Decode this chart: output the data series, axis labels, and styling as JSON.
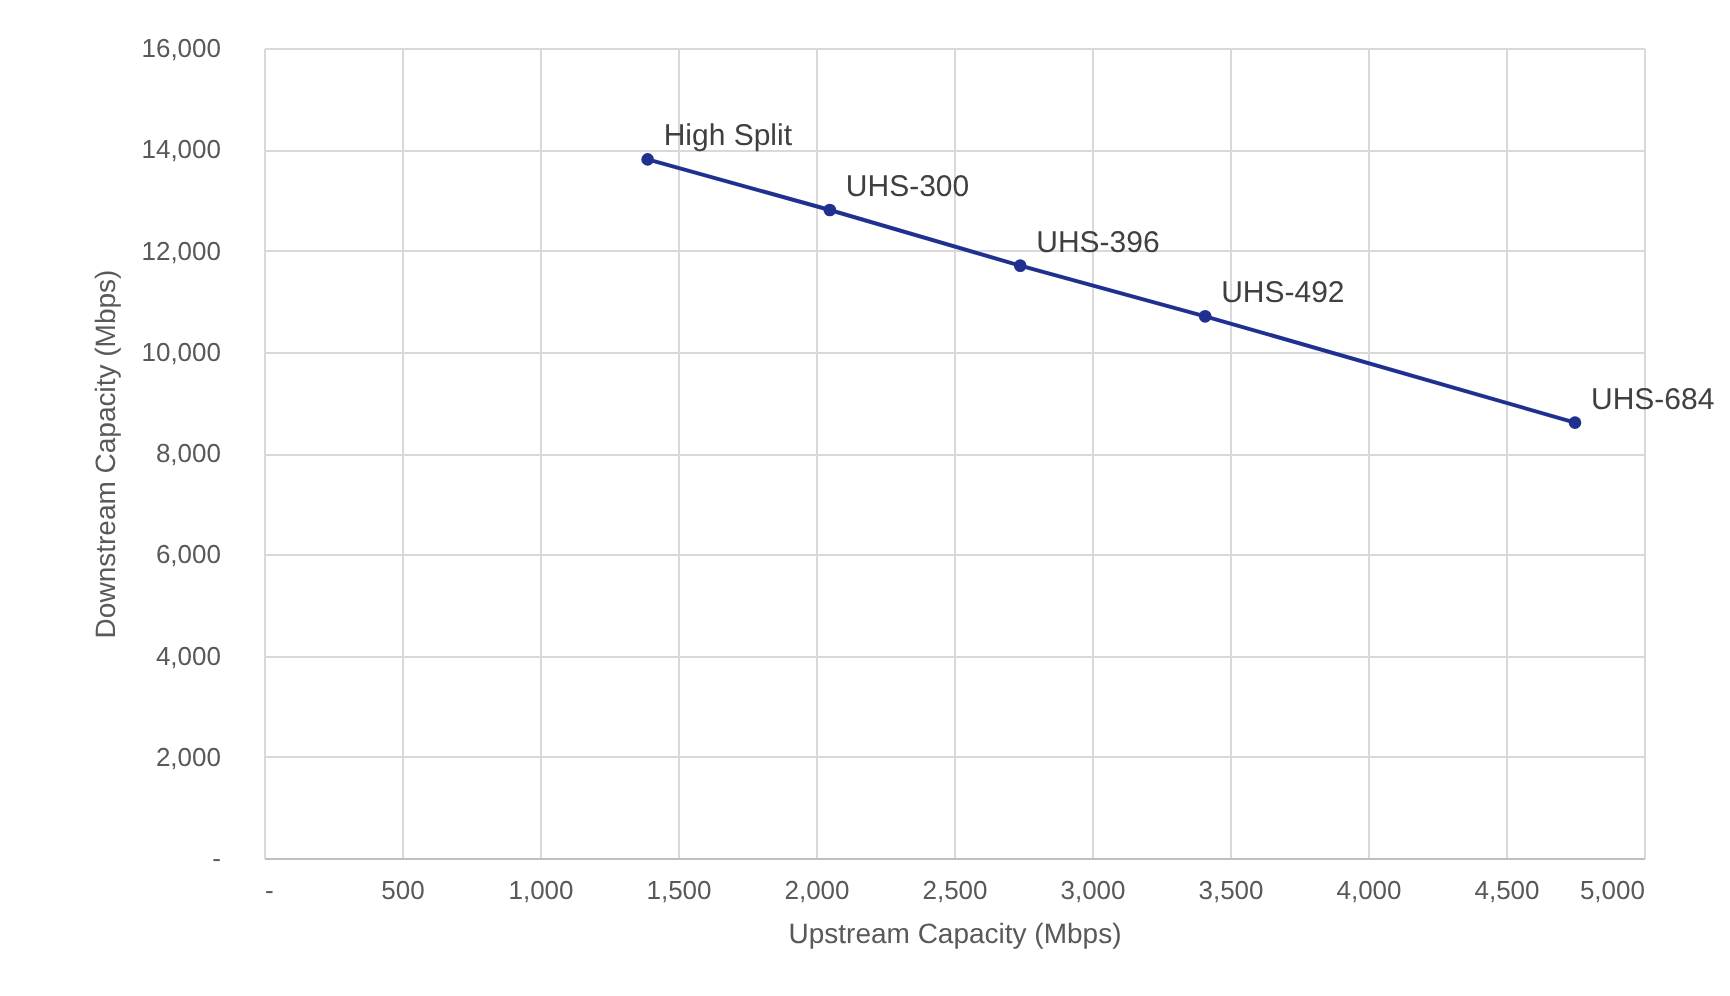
{
  "chart_data": {
    "type": "line",
    "xlabel": "Upstream Capacity (Mbps)",
    "ylabel": "Downstream Capacity (Mbps)",
    "x": [
      1390,
      2050,
      2740,
      3410,
      4750
    ],
    "series": [
      {
        "color": "#203090",
        "values": [
          13800,
          12800,
          11700,
          10700,
          8600
        ]
      }
    ],
    "xlim": [
      0,
      5000
    ],
    "xticks": [
      {
        "value": 0,
        "label": "-"
      },
      500,
      {
        "value": 1000,
        "label": "1,000"
      },
      {
        "value": 1500,
        "label": "1,500"
      },
      {
        "value": 2000,
        "label": "2,000"
      },
      {
        "value": 2500,
        "label": "2,500"
      },
      {
        "value": 3000,
        "label": "3,000"
      },
      {
        "value": 3500,
        "label": "3,500"
      },
      {
        "value": 4000,
        "label": "4,000"
      },
      {
        "value": 4500,
        "label": "4,500"
      },
      {
        "value": 5000,
        "label": "5,000"
      }
    ],
    "ylim": [
      0,
      16000
    ],
    "yticks": [
      {
        "value": 0,
        "label": "-"
      },
      {
        "value": 2000,
        "label": "2,000"
      },
      {
        "value": 4000,
        "label": "4,000"
      },
      {
        "value": 6000,
        "label": "6,000"
      },
      {
        "value": 8000,
        "label": "8,000"
      },
      {
        "value": 10000,
        "label": "10,000"
      },
      {
        "value": 12000,
        "label": "12,000"
      },
      {
        "value": 14000,
        "label": "14,000"
      },
      {
        "value": 16000,
        "label": "16,000"
      }
    ],
    "annotations": [
      {
        "text": "High Split",
        "x": 1390,
        "y": 13800
      },
      {
        "text": "UHS-300",
        "x": 2050,
        "y": 12800
      },
      {
        "text": "UHS-396",
        "x": 2740,
        "y": 11700
      },
      {
        "text": "UHS-492",
        "x": 3410,
        "y": 10700
      },
      {
        "text": "UHS-684",
        "x": 4750,
        "y": 8600
      }
    ],
    "grid": true,
    "marker": "circle",
    "line_style": "solid"
  }
}
